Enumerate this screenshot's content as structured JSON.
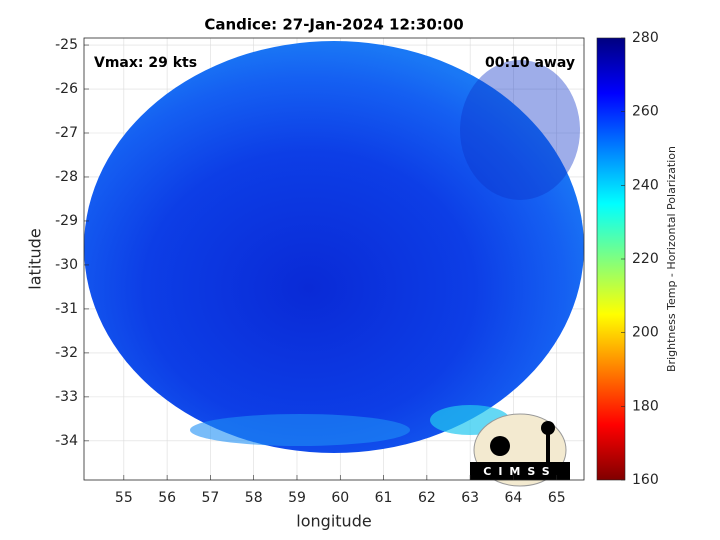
{
  "chart_data": {
    "type": "heatmap",
    "title": "Candice: 27-Jan-2024 12:30:00",
    "annotations": [
      "Vmax: 29 kts",
      "00:10 away"
    ],
    "xlabel": "longitude",
    "ylabel": "latitude",
    "xlim": [
      54.08,
      65.63
    ],
    "ylim": [
      -34.89,
      -24.84
    ],
    "xticks": [
      55,
      56,
      57,
      58,
      59,
      60,
      61,
      62,
      63,
      64,
      65
    ],
    "yticks": [
      -34,
      -33,
      -32,
      -31,
      -30,
      -29,
      -28,
      -27,
      -26,
      -25
    ],
    "grid": true,
    "colorbar": {
      "label": "Brightness Temp - Horizontal Polarization",
      "lim": [
        160,
        280
      ],
      "ticks": [
        160,
        180,
        200,
        220,
        240,
        260,
        280
      ],
      "colormap": "jet"
    },
    "logo": "CIMSS"
  }
}
